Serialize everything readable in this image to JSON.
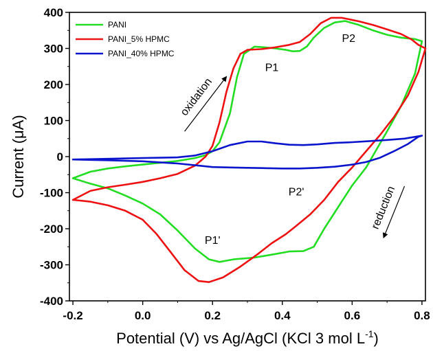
{
  "chart_data": {
    "type": "line",
    "title": "",
    "xlabel": "Potential (V) vs Ag/AgCl (KCl 3 mol L",
    "xlabel_sup": "-1",
    "xlabel_close": ")",
    "ylabel": "Current (μA)",
    "xlim": [
      -0.21,
      0.81
    ],
    "ylim": [
      -400,
      400
    ],
    "x_ticks": [
      -0.2,
      0.0,
      0.2,
      0.4,
      0.6,
      0.8
    ],
    "x_tick_labels": [
      "-0.2",
      "0.0",
      "0.2",
      "0.4",
      "0.6",
      "0.8"
    ],
    "y_ticks": [
      -400,
      -300,
      -200,
      -100,
      0,
      100,
      200,
      300,
      400
    ],
    "y_tick_labels": [
      "-400",
      "-300",
      "-200",
      "-100",
      "0",
      "100",
      "200",
      "300",
      "400"
    ],
    "grid": false,
    "legend_position": "top-left",
    "series": [
      {
        "name": "PANI",
        "color": "#22dd22",
        "points": [
          [
            -0.2,
            -60
          ],
          [
            -0.15,
            -42
          ],
          [
            -0.1,
            -33
          ],
          [
            -0.05,
            -27
          ],
          [
            0.0,
            -22
          ],
          [
            0.05,
            -17
          ],
          [
            0.1,
            -12
          ],
          [
            0.15,
            -4
          ],
          [
            0.18,
            4
          ],
          [
            0.2,
            15
          ],
          [
            0.22,
            40
          ],
          [
            0.25,
            120
          ],
          [
            0.27,
            220
          ],
          [
            0.29,
            285
          ],
          [
            0.32,
            305
          ],
          [
            0.35,
            303
          ],
          [
            0.38,
            300
          ],
          [
            0.41,
            296
          ],
          [
            0.43,
            292
          ],
          [
            0.45,
            293
          ],
          [
            0.47,
            305
          ],
          [
            0.49,
            330
          ],
          [
            0.52,
            357
          ],
          [
            0.55,
            372
          ],
          [
            0.58,
            376
          ],
          [
            0.62,
            365
          ],
          [
            0.66,
            350
          ],
          [
            0.7,
            338
          ],
          [
            0.74,
            330
          ],
          [
            0.78,
            326
          ],
          [
            0.8,
            320
          ],
          [
            0.78,
            230
          ],
          [
            0.74,
            140
          ],
          [
            0.7,
            70
          ],
          [
            0.67,
            20
          ],
          [
            0.64,
            -30
          ],
          [
            0.6,
            -80
          ],
          [
            0.56,
            -140
          ],
          [
            0.52,
            -200
          ],
          [
            0.49,
            -250
          ],
          [
            0.46,
            -262
          ],
          [
            0.42,
            -263
          ],
          [
            0.38,
            -270
          ],
          [
            0.32,
            -280
          ],
          [
            0.26,
            -285
          ],
          [
            0.22,
            -292
          ],
          [
            0.19,
            -285
          ],
          [
            0.15,
            -255
          ],
          [
            0.1,
            -205
          ],
          [
            0.05,
            -160
          ],
          [
            0.0,
            -130
          ],
          [
            -0.05,
            -108
          ],
          [
            -0.1,
            -88
          ],
          [
            -0.15,
            -75
          ],
          [
            -0.2,
            -60
          ]
        ]
      },
      {
        "name": "PANI_5% HPMC",
        "color": "#ee1111",
        "points": [
          [
            -0.2,
            -120
          ],
          [
            -0.15,
            -95
          ],
          [
            -0.1,
            -85
          ],
          [
            -0.05,
            -78
          ],
          [
            0.0,
            -70
          ],
          [
            0.05,
            -60
          ],
          [
            0.1,
            -48
          ],
          [
            0.15,
            -25
          ],
          [
            0.18,
            0
          ],
          [
            0.2,
            30
          ],
          [
            0.22,
            95
          ],
          [
            0.24,
            180
          ],
          [
            0.26,
            245
          ],
          [
            0.28,
            285
          ],
          [
            0.3,
            296
          ],
          [
            0.34,
            298
          ],
          [
            0.38,
            303
          ],
          [
            0.42,
            310
          ],
          [
            0.45,
            318
          ],
          [
            0.48,
            340
          ],
          [
            0.51,
            370
          ],
          [
            0.54,
            385
          ],
          [
            0.57,
            385
          ],
          [
            0.62,
            375
          ],
          [
            0.66,
            365
          ],
          [
            0.7,
            353
          ],
          [
            0.74,
            340
          ],
          [
            0.77,
            325
          ],
          [
            0.79,
            310
          ],
          [
            0.81,
            300
          ],
          [
            0.79,
            235
          ],
          [
            0.76,
            170
          ],
          [
            0.72,
            110
          ],
          [
            0.68,
            60
          ],
          [
            0.64,
            15
          ],
          [
            0.6,
            -30
          ],
          [
            0.56,
            -70
          ],
          [
            0.52,
            -120
          ],
          [
            0.48,
            -160
          ],
          [
            0.44,
            -192
          ],
          [
            0.41,
            -215
          ],
          [
            0.37,
            -240
          ],
          [
            0.33,
            -270
          ],
          [
            0.28,
            -305
          ],
          [
            0.23,
            -335
          ],
          [
            0.19,
            -348
          ],
          [
            0.16,
            -345
          ],
          [
            0.12,
            -315
          ],
          [
            0.08,
            -265
          ],
          [
            0.04,
            -215
          ],
          [
            0.0,
            -175
          ],
          [
            -0.05,
            -150
          ],
          [
            -0.1,
            -135
          ],
          [
            -0.15,
            -125
          ],
          [
            -0.2,
            -120
          ]
        ]
      },
      {
        "name": "PANI_40% HPMC",
        "color": "#0a14cc",
        "points": [
          [
            -0.2,
            -8
          ],
          [
            -0.1,
            -6
          ],
          [
            0.0,
            -4
          ],
          [
            0.1,
            -2
          ],
          [
            0.15,
            3
          ],
          [
            0.2,
            15
          ],
          [
            0.25,
            32
          ],
          [
            0.3,
            42
          ],
          [
            0.34,
            42
          ],
          [
            0.38,
            37
          ],
          [
            0.42,
            33
          ],
          [
            0.46,
            32
          ],
          [
            0.5,
            34
          ],
          [
            0.55,
            38
          ],
          [
            0.6,
            40
          ],
          [
            0.65,
            43
          ],
          [
            0.7,
            46
          ],
          [
            0.75,
            50
          ],
          [
            0.8,
            58
          ],
          [
            0.79,
            55
          ],
          [
            0.76,
            35
          ],
          [
            0.72,
            15
          ],
          [
            0.68,
            -3
          ],
          [
            0.64,
            -15
          ],
          [
            0.6,
            -22
          ],
          [
            0.55,
            -28
          ],
          [
            0.5,
            -31
          ],
          [
            0.45,
            -33
          ],
          [
            0.4,
            -33
          ],
          [
            0.35,
            -32
          ],
          [
            0.3,
            -31
          ],
          [
            0.25,
            -30
          ],
          [
            0.2,
            -29
          ],
          [
            0.15,
            -24
          ],
          [
            0.1,
            -19
          ],
          [
            0.0,
            -13
          ],
          [
            -0.1,
            -10
          ],
          [
            -0.2,
            -8
          ]
        ]
      }
    ],
    "annotations": {
      "peaks": [
        {
          "label": "P1",
          "x": 0.37,
          "y": 237
        },
        {
          "label": "P2",
          "x": 0.59,
          "y": 318
        },
        {
          "label": "P2'",
          "x": 0.44,
          "y": -108
        },
        {
          "label": "P1'",
          "x": 0.2,
          "y": -242
        }
      ],
      "oxidation": {
        "label": "oxidation",
        "from": [
          0.12,
          70
        ],
        "to": [
          0.24,
          222
        ]
      },
      "reduction": {
        "label": "reduction",
        "from": [
          0.75,
          -82
        ],
        "to": [
          0.69,
          -225
        ]
      }
    }
  }
}
